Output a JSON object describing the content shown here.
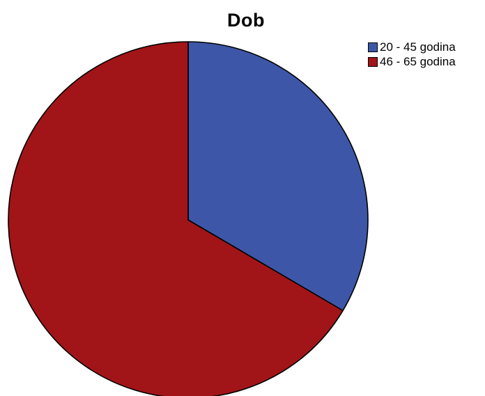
{
  "chart_data": {
    "type": "pie",
    "title": "Dob",
    "categories": [
      "20 - 45 godina",
      "46 - 65 godina"
    ],
    "values": [
      33.5,
      66.5
    ],
    "colors": [
      "#3d56a8",
      "#a11519"
    ],
    "legend": "top-right",
    "start_angle": "12 o'clock",
    "direction": "clockwise",
    "slice_outline_color": "#000000"
  }
}
